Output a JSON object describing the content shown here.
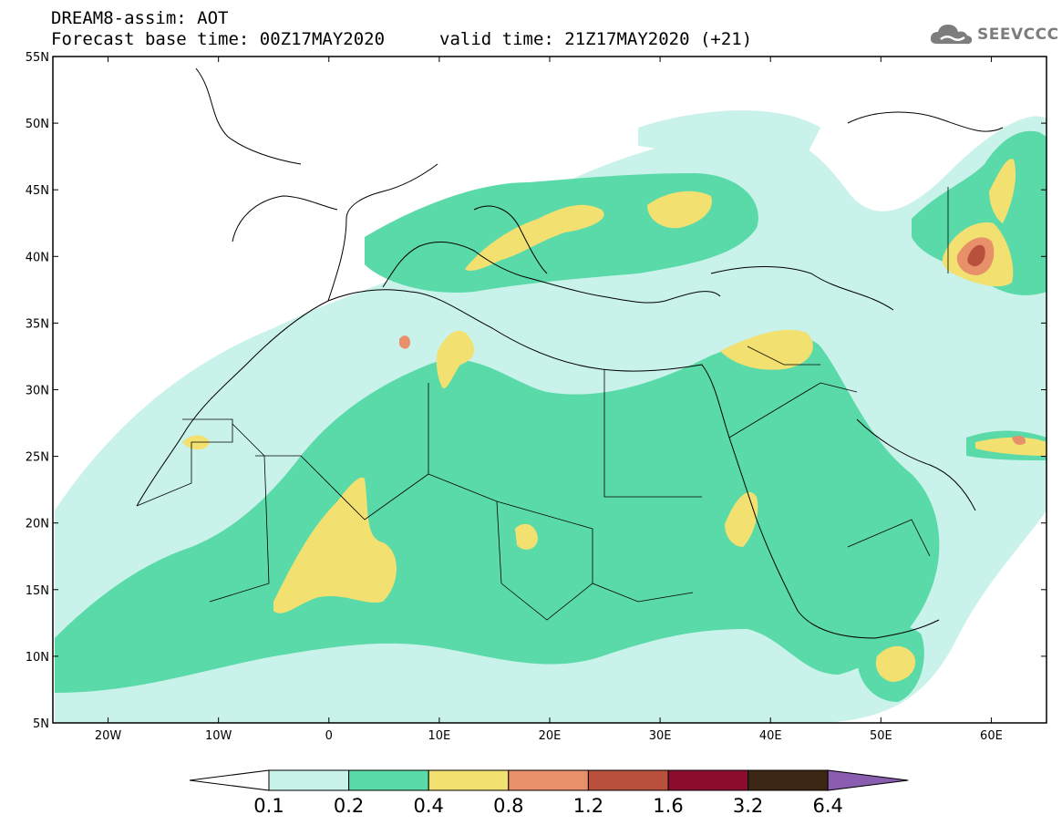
{
  "header": {
    "title": "DREAM8-assim: AOT",
    "base_time": "Forecast base time: 00Z17MAY2020",
    "valid_time": "valid time: 21Z17MAY2020 (+21)",
    "brand": "SEEVCCC",
    "brand_icon": "cloud-logo-icon"
  },
  "axes": {
    "lat_labels": [
      "5N",
      "10N",
      "15N",
      "20N",
      "25N",
      "30N",
      "35N",
      "40N",
      "45N",
      "50N",
      "55N"
    ],
    "lon_labels": [
      "20W",
      "10W",
      "0",
      "10E",
      "20E",
      "30E",
      "40E",
      "50E",
      "60E"
    ]
  },
  "colorbar": {
    "labels": [
      "0.1",
      "0.2",
      "0.4",
      "0.8",
      "1.2",
      "1.6",
      "3.2",
      "6.4"
    ],
    "colors": [
      "#c8f2ea",
      "#5ad9a9",
      "#f2e070",
      "#e8906a",
      "#b8503c",
      "#8a0d2e",
      "#3e2614",
      "#8a5db0"
    ]
  },
  "map_fill": {
    "level_colors": [
      "#c8f2ea",
      "#5ad9a9",
      "#f2e070",
      "#e8906a",
      "#b8503c"
    ]
  }
}
